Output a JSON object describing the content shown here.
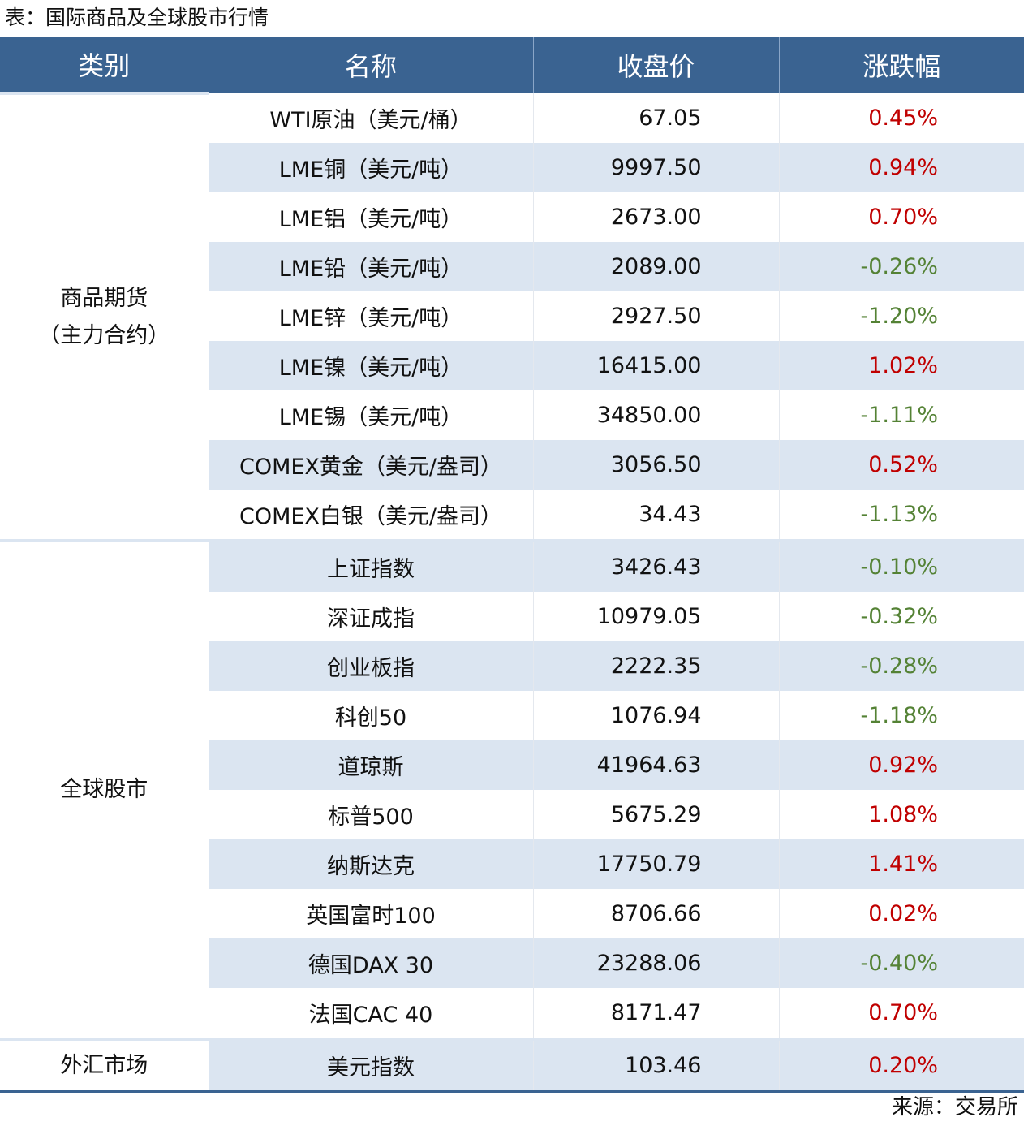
{
  "title": "表：国际商品及全球股市行情",
  "table": {
    "header": [
      "类别",
      "名称",
      "收盘价",
      "涨跌幅"
    ],
    "groups": [
      {
        "category": [
          "商品期货",
          "（主力合约）"
        ],
        "rows": [
          [
            "WTI原油（美元/桶）",
            "67.05",
            "0.45%"
          ],
          [
            "LME铜（美元/吨）",
            "9997.50",
            "0.94%"
          ],
          [
            "LME铝（美元/吨）",
            "2673.00",
            "0.70%"
          ],
          [
            "LME铅（美元/吨）",
            "2089.00",
            "-0.26%"
          ],
          [
            "LME锌（美元/吨）",
            "2927.50",
            "-1.20%"
          ],
          [
            "LME镍（美元/吨）",
            "16415.00",
            "1.02%"
          ],
          [
            "LME锡（美元/吨）",
            "34850.00",
            "-1.11%"
          ],
          [
            "COMEX黄金（美元/盎司）",
            "3056.50",
            "0.52%"
          ],
          [
            "COMEX白银（美元/盎司）",
            "34.43",
            "-1.13%"
          ]
        ]
      },
      {
        "category": [
          "全球股市"
        ],
        "rows": [
          [
            "上证指数",
            "3426.43",
            "-0.10%"
          ],
          [
            "深证成指",
            "10979.05",
            "-0.32%"
          ],
          [
            "创业板指",
            "2222.35",
            "-0.28%"
          ],
          [
            "科创50",
            "1076.94",
            "-1.18%"
          ],
          [
            "道琼斯",
            "41964.63",
            "0.92%"
          ],
          [
            "标普500",
            "5675.29",
            "1.08%"
          ],
          [
            "纳斯达克",
            "17750.79",
            "1.41%"
          ],
          [
            "英国富时100",
            "8706.66",
            "0.02%"
          ],
          [
            "德国DAX 30",
            "23288.06",
            "-0.40%"
          ],
          [
            "法国CAC 40",
            "8171.47",
            "0.70%"
          ]
        ]
      },
      {
        "category": [
          "外汇市场"
        ],
        "rows": [
          [
            "美元指数",
            "103.46",
            "0.20%"
          ]
        ]
      }
    ]
  },
  "source": "来源：交易所"
}
